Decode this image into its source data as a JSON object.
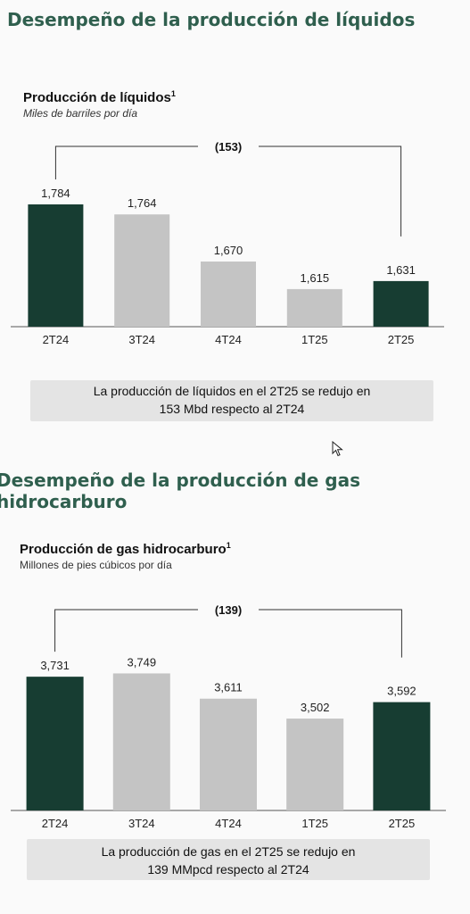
{
  "sections": [
    {
      "title": "Desempeño de la producción de líquidos",
      "chart_title": "Producción de líquidos",
      "chart_title_sup": "1",
      "chart_subtitle": "Miles de barriles por día",
      "note_line1": "La producción de líquidos en el 2T25 se redujo en",
      "note_line2": "153 Mbd respecto al 2T24"
    },
    {
      "title_line1": "Desempeño de la producción de gas",
      "title_line2": "hidrocarburo",
      "chart_title": "Producción de gas hidrocarburo",
      "chart_title_sup": "1",
      "chart_subtitle": "Millones de pies cúbicos por día",
      "note_line1": "La producción de gas en el 2T25 se redujo en",
      "note_line2": "139 MMpcd respecto al 2T24"
    }
  ],
  "colors": {
    "highlight": "#173d32",
    "neutral": "#c4c4c4",
    "title": "#2f5f4e"
  },
  "chart_data": [
    {
      "type": "bar",
      "title": "Producción de líquidos",
      "subtitle": "Miles de barriles por día",
      "categories": [
        "2T24",
        "3T24",
        "4T24",
        "1T25",
        "2T25"
      ],
      "values": [
        1784,
        1764,
        1670,
        1615,
        1631
      ],
      "value_labels": [
        "1,784",
        "1,764",
        "1,670",
        "1,615",
        "1,631"
      ],
      "highlight": [
        true,
        false,
        false,
        false,
        true
      ],
      "annotation": "(153)",
      "ylim": [
        1540,
        1800
      ]
    },
    {
      "type": "bar",
      "title": "Producción de gas hidrocarburo",
      "subtitle": "Millones de pies cúbicos por día",
      "categories": [
        "2T24",
        "3T24",
        "4T24",
        "1T25",
        "2T25"
      ],
      "values": [
        3731,
        3749,
        3611,
        3502,
        3592
      ],
      "value_labels": [
        "3,731",
        "3,749",
        "3,611",
        "3,502",
        "3,592"
      ],
      "highlight": [
        true,
        false,
        false,
        false,
        true
      ],
      "annotation": "(139)",
      "ylim": [
        3000,
        3800
      ]
    }
  ]
}
